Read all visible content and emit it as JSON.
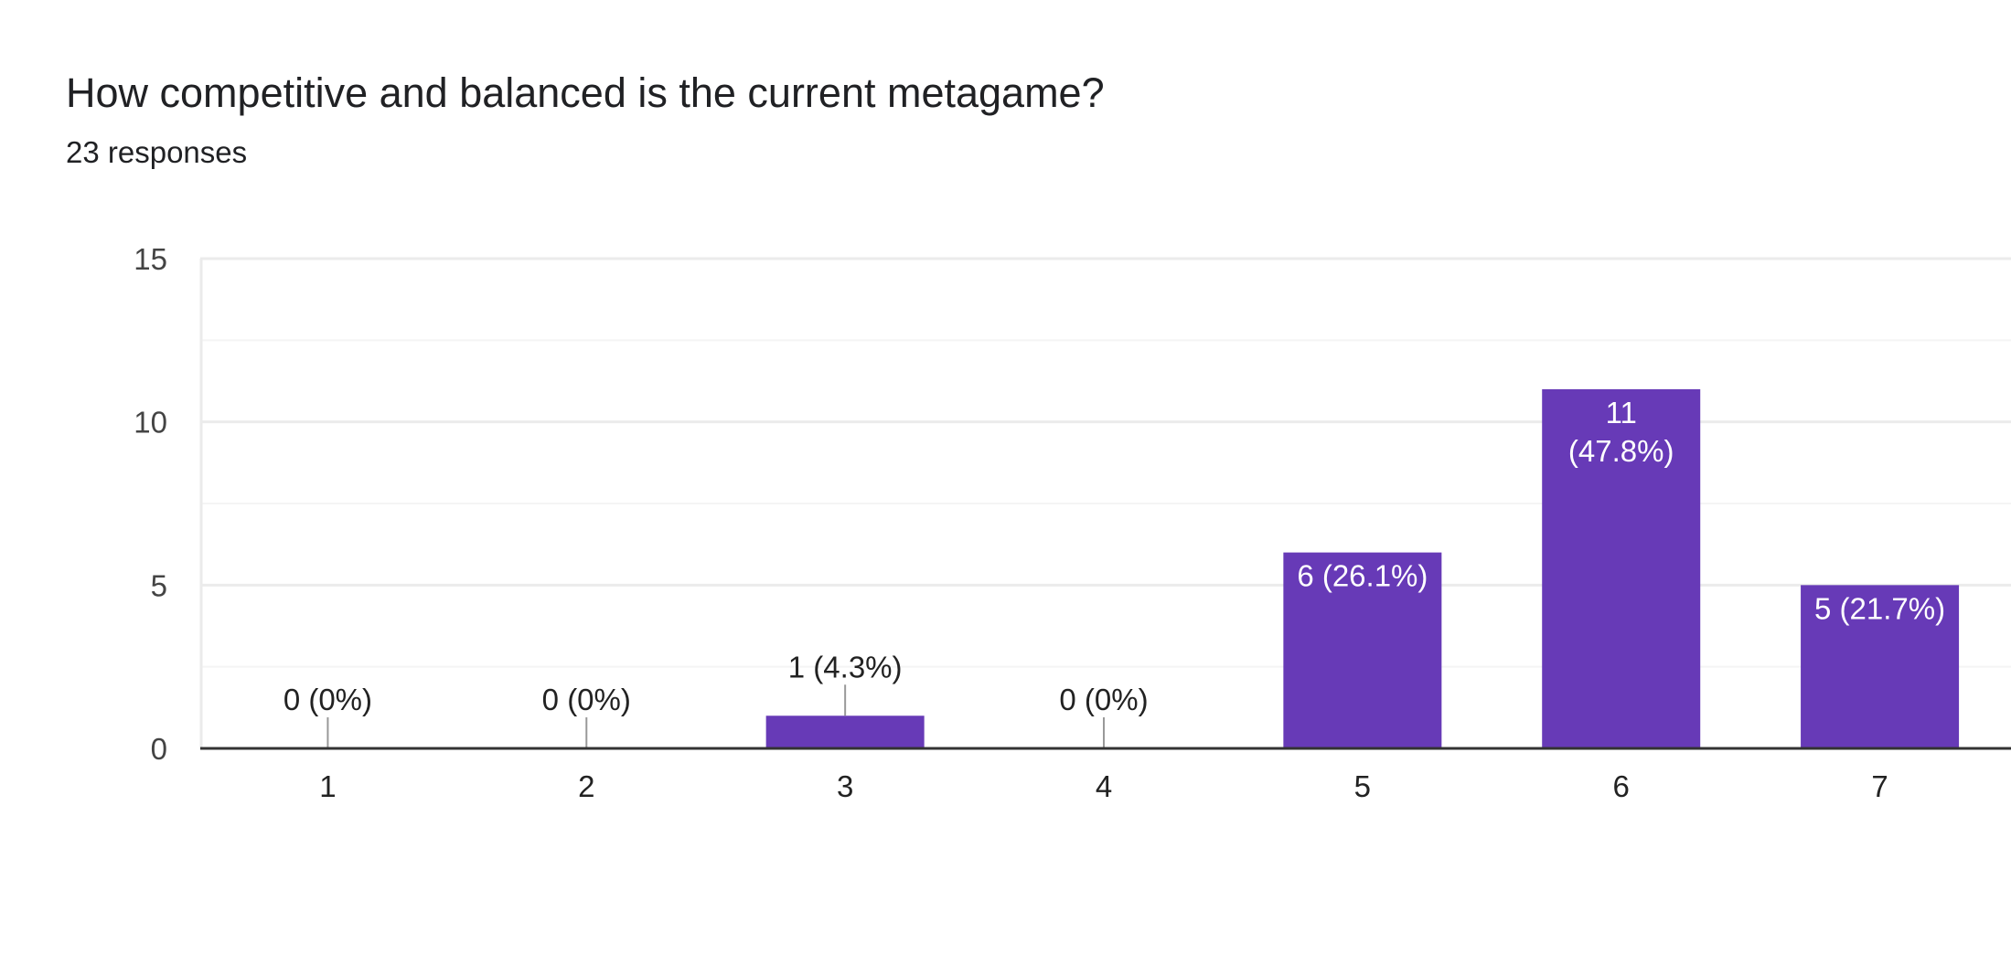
{
  "question": {
    "title": "How competitive and balanced is the current metagame?",
    "responses": "23 responses"
  },
  "colors": {
    "bar": "#673ab7",
    "gridline": "#ebebeb",
    "minor_gridline": "#f4f4f4",
    "axis": "#333333",
    "leader": "#999999",
    "text": "#202124"
  },
  "chart_data": {
    "type": "bar",
    "categories": [
      "1",
      "2",
      "3",
      "4",
      "5",
      "6",
      "7"
    ],
    "values": [
      0,
      0,
      1,
      0,
      6,
      11,
      5
    ],
    "data_labels": [
      "0 (0%)",
      "0 (0%)",
      "1 (4.3%)",
      "0 (0%)",
      "6 (26.1%)",
      "11 (47.8%)",
      "5 (21.7%)"
    ],
    "ylim": [
      0,
      15
    ],
    "yticks": [
      0,
      5,
      10,
      15
    ],
    "xlabel": "",
    "ylabel": "",
    "grid": true,
    "legend": false
  }
}
